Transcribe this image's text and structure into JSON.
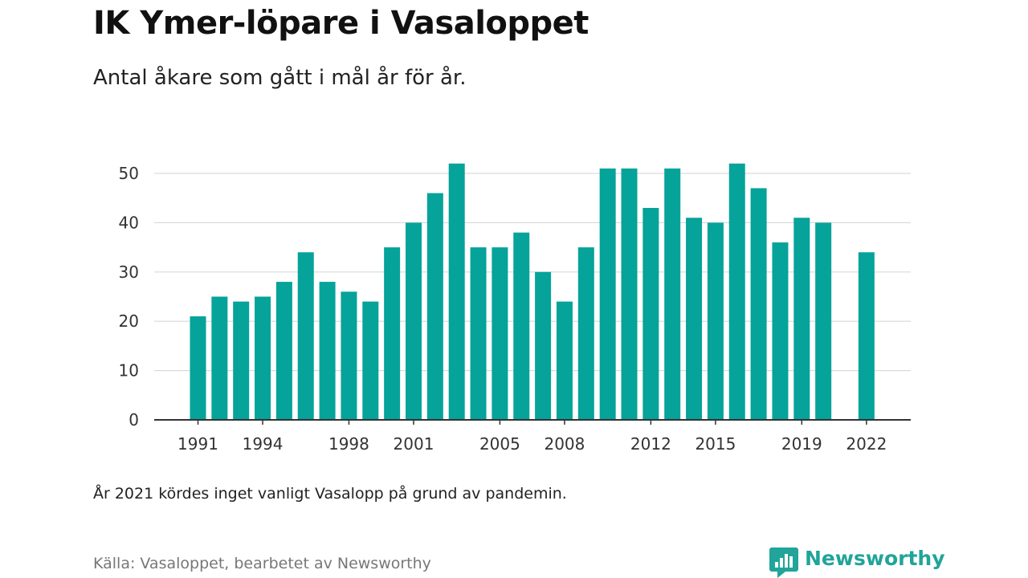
{
  "title": "IK Ymer-löpare i Vasaloppet",
  "subtitle": "Antal åkare som gått i mål år för år.",
  "note": "År 2021 kördes inget vanligt Vasalopp på grund av pandemin.",
  "source": "Källa: Vasaloppet, bearbetet av Newsworthy",
  "brand": {
    "name": "Newsworthy",
    "logo_icon": "newsworthy-chart-bubble-icon"
  },
  "colors": {
    "bar": "#05a39a",
    "grid": "#d9d9d9",
    "axis": "#333333",
    "brand": "#21a49a"
  },
  "chart_data": {
    "type": "bar",
    "categories": [
      "1991",
      "1992",
      "1993",
      "1994",
      "1995",
      "1996",
      "1997",
      "1998",
      "1999",
      "2000",
      "2001",
      "2002",
      "2003",
      "2004",
      "2005",
      "2006",
      "2007",
      "2008",
      "2009",
      "2010",
      "2011",
      "2012",
      "2013",
      "2014",
      "2015",
      "2016",
      "2017",
      "2018",
      "2019",
      "2020",
      "2021",
      "2022"
    ],
    "values": [
      21,
      25,
      24,
      25,
      28,
      34,
      28,
      26,
      24,
      35,
      40,
      46,
      52,
      35,
      35,
      38,
      30,
      24,
      35,
      51,
      51,
      43,
      51,
      41,
      40,
      52,
      47,
      36,
      41,
      40,
      null,
      34
    ],
    "xtick_labels": [
      "1991",
      "1994",
      "1998",
      "2001",
      "2005",
      "2008",
      "2012",
      "2015",
      "2019",
      "2022"
    ],
    "yticks": [
      0,
      10,
      20,
      30,
      40,
      50
    ],
    "ylim": [
      0,
      52
    ],
    "grid": true,
    "legend": "none"
  }
}
